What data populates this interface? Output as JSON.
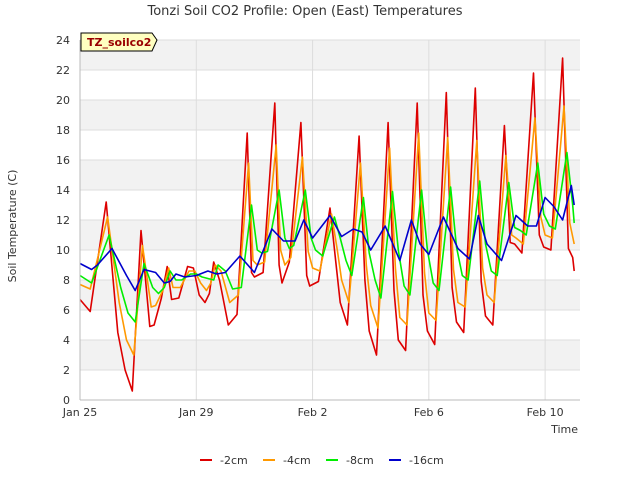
{
  "chart_data": {
    "type": "line",
    "title": "Tonzi Soil CO2 Profile: Open (East) Temperatures",
    "xlabel": "Time",
    "ylabel": "Soil Temperature (C)",
    "ylim": [
      0,
      24
    ],
    "xlim": [
      0,
      17.2
    ],
    "yticks": [
      0,
      2,
      4,
      6,
      8,
      10,
      12,
      14,
      16,
      18,
      20,
      22,
      24
    ],
    "xticks": [
      {
        "x": 0,
        "label": "Jan 25"
      },
      {
        "x": 4,
        "label": "Jan 29"
      },
      {
        "x": 8,
        "label": "Feb 2"
      },
      {
        "x": 12,
        "label": "Feb 6"
      },
      {
        "x": 16,
        "label": "Feb 10"
      }
    ],
    "tag": "TZ_soilco2",
    "grid": true,
    "legend_position": "bottom-center",
    "series": [
      {
        "name": "-2cm",
        "color": "#dd0000",
        "x": [
          0,
          0.35,
          0.9,
          1.3,
          1.55,
          1.8,
          2.1,
          2.4,
          2.55,
          2.8,
          3.0,
          3.15,
          3.4,
          3.7,
          3.9,
          4.1,
          4.3,
          4.45,
          4.6,
          4.8,
          5.1,
          5.4,
          5.75,
          5.9,
          6.0,
          6.3,
          6.7,
          6.85,
          6.95,
          7.2,
          7.6,
          7.8,
          7.9,
          8.2,
          8.6,
          8.8,
          8.95,
          9.2,
          9.6,
          9.8,
          9.95,
          10.2,
          10.6,
          10.8,
          10.95,
          11.2,
          11.6,
          11.8,
          11.95,
          12.2,
          12.6,
          12.8,
          12.95,
          13.2,
          13.6,
          13.8,
          13.95,
          14.2,
          14.6,
          14.8,
          14.95,
          15.2,
          15.6,
          15.8,
          15.95,
          16.2,
          16.6,
          16.8,
          16.95,
          17.0
        ],
        "y": [
          6.7,
          5.9,
          13.2,
          4.5,
          2.0,
          0.6,
          11.3,
          4.9,
          5.0,
          6.8,
          8.9,
          6.7,
          6.8,
          8.9,
          8.8,
          7.0,
          6.5,
          7.1,
          9.2,
          8.0,
          5.0,
          5.7,
          17.8,
          8.5,
          8.2,
          8.5,
          19.8,
          9.0,
          7.8,
          9.2,
          18.5,
          8.3,
          7.6,
          7.9,
          12.8,
          9.2,
          6.5,
          5.0,
          17.6,
          8.0,
          4.6,
          3.0,
          18.5,
          7.3,
          4.0,
          3.3,
          19.8,
          7.0,
          4.6,
          3.7,
          20.5,
          7.5,
          5.2,
          4.5,
          20.8,
          7.9,
          5.6,
          5.0,
          18.3,
          10.5,
          10.4,
          9.8,
          21.8,
          11.0,
          10.2,
          10.0,
          22.8,
          10.1,
          9.5,
          8.6
        ]
      },
      {
        "name": "-4cm",
        "color": "#ff9900",
        "x": [
          0,
          0.35,
          0.95,
          1.35,
          1.6,
          1.85,
          2.15,
          2.45,
          2.6,
          2.85,
          3.05,
          3.2,
          3.45,
          3.75,
          3.95,
          4.15,
          4.35,
          4.5,
          4.65,
          4.85,
          5.15,
          5.45,
          5.8,
          5.95,
          6.1,
          6.35,
          6.75,
          6.9,
          7.05,
          7.25,
          7.65,
          7.85,
          8.0,
          8.25,
          8.65,
          8.85,
          9.0,
          9.25,
          9.65,
          9.85,
          10.0,
          10.25,
          10.65,
          10.85,
          11.0,
          11.25,
          11.65,
          11.85,
          12.0,
          12.25,
          12.65,
          12.85,
          13.0,
          13.25,
          13.65,
          13.85,
          14.0,
          14.25,
          14.65,
          14.85,
          15.0,
          15.25,
          15.65,
          15.85,
          16.0,
          16.25,
          16.65,
          16.85,
          17.0
        ],
        "y": [
          7.7,
          7.4,
          12.2,
          6.5,
          4.0,
          3.0,
          10.3,
          6.2,
          6.3,
          7.3,
          8.8,
          7.5,
          7.5,
          8.6,
          8.6,
          7.8,
          7.3,
          7.8,
          9.0,
          8.6,
          6.5,
          7.0,
          15.8,
          9.3,
          9.0,
          9.2,
          17.0,
          10.0,
          9.0,
          9.5,
          16.2,
          9.9,
          8.8,
          8.6,
          12.4,
          10.0,
          8.0,
          6.5,
          15.8,
          9.0,
          6.3,
          4.8,
          16.8,
          8.8,
          5.5,
          5.0,
          17.8,
          8.5,
          5.8,
          5.3,
          17.5,
          8.7,
          6.5,
          6.2,
          17.3,
          8.8,
          7.0,
          6.5,
          16.3,
          11.0,
          10.8,
          10.4,
          18.8,
          12.2,
          11.0,
          10.8,
          19.6,
          11.8,
          10.4
        ]
      },
      {
        "name": "-8cm",
        "color": "#00ee00",
        "x": [
          0,
          0.4,
          1.0,
          1.4,
          1.65,
          1.9,
          2.2,
          2.5,
          2.7,
          2.9,
          3.1,
          3.3,
          3.5,
          3.8,
          4.0,
          4.2,
          4.4,
          4.6,
          4.75,
          5.0,
          5.25,
          5.55,
          5.9,
          6.1,
          6.25,
          6.45,
          6.85,
          7.05,
          7.2,
          7.35,
          7.75,
          7.95,
          8.1,
          8.35,
          8.75,
          8.95,
          9.15,
          9.35,
          9.75,
          9.95,
          10.15,
          10.35,
          10.75,
          10.95,
          11.15,
          11.35,
          11.75,
          11.95,
          12.15,
          12.35,
          12.75,
          12.95,
          13.15,
          13.35,
          13.75,
          13.95,
          14.15,
          14.35,
          14.75,
          14.95,
          15.15,
          15.35,
          15.75,
          15.95,
          16.15,
          16.35,
          16.75,
          16.95,
          17.0
        ],
        "y": [
          8.3,
          7.8,
          11.0,
          7.5,
          5.8,
          5.2,
          9.1,
          7.5,
          7.1,
          7.5,
          8.6,
          8.0,
          8.0,
          8.4,
          8.4,
          8.2,
          8.1,
          8.0,
          9.0,
          8.6,
          7.4,
          7.5,
          13.0,
          10.0,
          9.8,
          9.9,
          14.0,
          10.8,
          10.1,
          10.3,
          14.0,
          10.8,
          10.0,
          9.6,
          12.2,
          10.8,
          9.3,
          8.3,
          13.5,
          9.8,
          8.0,
          6.8,
          13.9,
          10.0,
          7.6,
          7.0,
          14.0,
          10.0,
          7.8,
          7.3,
          14.2,
          10.2,
          8.3,
          8.0,
          14.6,
          10.4,
          8.6,
          8.3,
          14.5,
          11.5,
          11.3,
          11.0,
          15.8,
          12.4,
          11.6,
          11.4,
          16.5,
          13.0,
          11.8
        ]
      },
      {
        "name": "-16cm",
        "color": "#0000cc",
        "x": [
          0,
          0.4,
          0.6,
          1.1,
          1.6,
          1.9,
          2.2,
          2.6,
          2.9,
          3.1,
          3.3,
          3.6,
          4.0,
          4.4,
          4.7,
          5.0,
          5.5,
          6.0,
          6.6,
          7.0,
          7.4,
          7.7,
          8.0,
          8.6,
          9.0,
          9.4,
          9.7,
          10.0,
          10.5,
          11.0,
          11.4,
          11.7,
          12.0,
          12.5,
          13.0,
          13.4,
          13.7,
          14.0,
          14.5,
          15.0,
          15.4,
          15.7,
          16.0,
          16.3,
          16.6,
          16.9,
          17.0
        ],
        "y": [
          9.1,
          8.7,
          9.0,
          10.1,
          8.3,
          7.3,
          8.7,
          8.5,
          7.8,
          7.9,
          8.4,
          8.2,
          8.3,
          8.6,
          8.4,
          8.5,
          9.6,
          8.5,
          11.4,
          10.6,
          10.6,
          12.0,
          10.8,
          12.3,
          10.9,
          11.4,
          11.2,
          10.0,
          11.6,
          9.3,
          12.0,
          10.4,
          9.7,
          12.2,
          10.1,
          9.4,
          12.3,
          10.4,
          9.3,
          12.3,
          11.6,
          11.6,
          13.5,
          12.9,
          12.0,
          14.3,
          13.0
        ]
      }
    ]
  }
}
